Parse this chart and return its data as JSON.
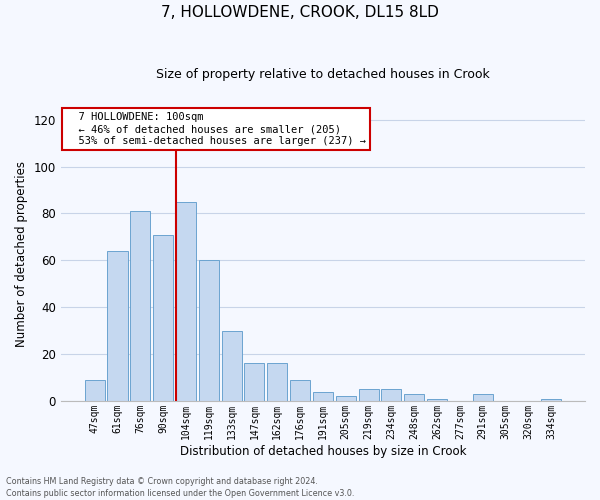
{
  "title": "7, HOLLOWDENE, CROOK, DL15 8LD",
  "subtitle": "Size of property relative to detached houses in Crook",
  "xlabel": "Distribution of detached houses by size in Crook",
  "ylabel": "Number of detached properties",
  "footer_line1": "Contains HM Land Registry data © Crown copyright and database right 2024.",
  "footer_line2": "Contains public sector information licensed under the Open Government Licence v3.0.",
  "annotation_line1": "7 HOLLOWDENE: 100sqm",
  "annotation_line2": "← 46% of detached houses are smaller (205)",
  "annotation_line3": "53% of semi-detached houses are larger (237) →",
  "bar_labels": [
    "47sqm",
    "61sqm",
    "76sqm",
    "90sqm",
    "104sqm",
    "119sqm",
    "133sqm",
    "147sqm",
    "162sqm",
    "176sqm",
    "191sqm",
    "205sqm",
    "219sqm",
    "234sqm",
    "248sqm",
    "262sqm",
    "277sqm",
    "291sqm",
    "305sqm",
    "320sqm",
    "334sqm"
  ],
  "bar_values": [
    9,
    64,
    81,
    71,
    85,
    60,
    30,
    16,
    16,
    9,
    4,
    2,
    5,
    5,
    3,
    1,
    0,
    3,
    0,
    0,
    1
  ],
  "bar_color": "#c5d8f0",
  "bar_edge_color": "#6ba3d0",
  "vline_color": "#cc0000",
  "vline_x": 3.57,
  "ylim": [
    0,
    125
  ],
  "yticks": [
    0,
    20,
    40,
    60,
    80,
    100,
    120
  ],
  "annotation_box_color": "#ffffff",
  "annotation_box_edge": "#cc0000",
  "background_color": "#f5f8ff",
  "grid_color": "#c8d4e8",
  "title_fontsize": 11,
  "subtitle_fontsize": 9
}
